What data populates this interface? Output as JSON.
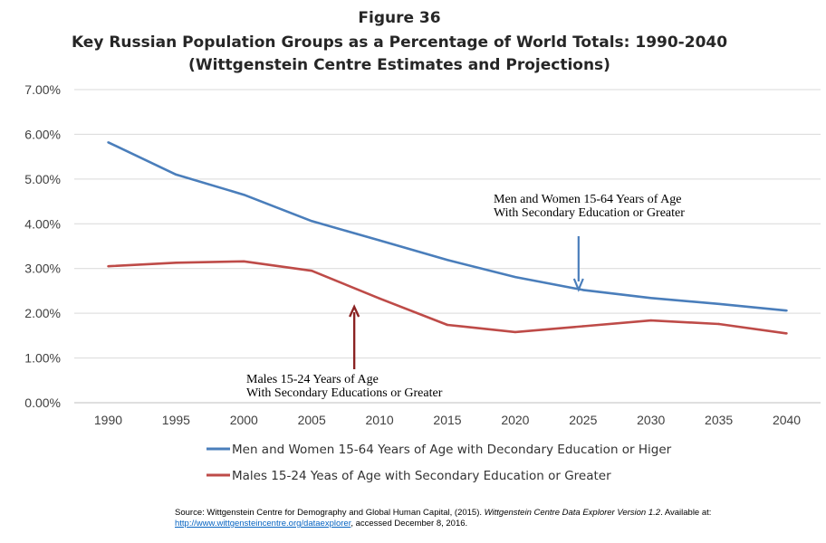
{
  "figure": {
    "label": "Figure 36",
    "title": "Key Russian Population Groups as a Percentage of World Totals: 1990-2040",
    "subtitle": "(Wittgenstein Centre Estimates and Projections)"
  },
  "chart_data": {
    "type": "line",
    "title": "Key Russian Population Groups as a Percentage of World Totals: 1990-2040",
    "subtitle": "(Wittgenstein Centre Estimates and Projections)",
    "x": [
      1990,
      1995,
      2000,
      2005,
      2010,
      2015,
      2020,
      2025,
      2030,
      2035,
      2040
    ],
    "ylim": [
      0,
      7
    ],
    "y_ticks": [
      "0.00%",
      "1.00%",
      "2.00%",
      "3.00%",
      "4.00%",
      "5.00%",
      "6.00%",
      "7.00%"
    ],
    "y_format": "percent",
    "grid": true,
    "legend_position": "bottom",
    "series": [
      {
        "name": "Men and Women 15-64 Years of Age with Decondary Education or Higer",
        "color": "#4a7ebb",
        "values": [
          5.82,
          5.1,
          4.65,
          4.06,
          3.63,
          3.19,
          2.81,
          2.52,
          2.34,
          2.21,
          2.06
        ]
      },
      {
        "name": "Males 15-24 Yeas of Age with Secondary Education or Greater",
        "color": "#be4b48",
        "values": [
          3.05,
          3.13,
          3.16,
          2.95,
          2.33,
          1.74,
          1.58,
          1.71,
          1.84,
          1.76,
          1.55
        ]
      }
    ],
    "annotations": [
      {
        "lines": [
          "Men and Women 15-64 Years of Age",
          "With Secondary Education or Greater"
        ],
        "arrow_color": "#4a7ebb",
        "points_to_x": 2025
      },
      {
        "lines": [
          "Males 15-24 Years of Age",
          "With Secondary Educations or Greater"
        ],
        "arrow_color": "#8b2323",
        "points_to_x": 2008
      }
    ]
  },
  "source": {
    "prefix": "Source: Wittgenstein Centre for Demography and Global Human Capital, (2015). ",
    "italic": "Wittgenstein Centre Data Explorer Version 1.2",
    "mid": ". Available at: ",
    "link": "http://www.wittgensteincentre.org/dataexplorer",
    "suffix": ", accessed December 8, 2016."
  }
}
